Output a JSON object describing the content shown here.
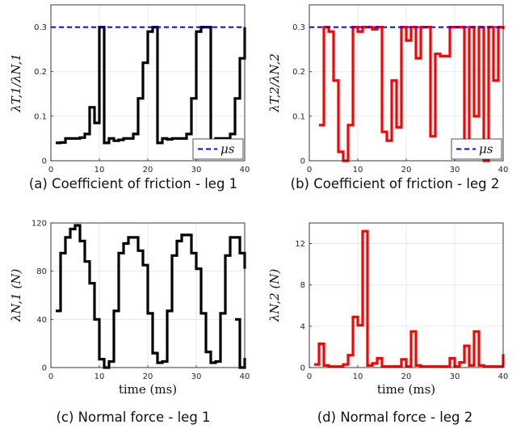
{
  "chart_data": [
    {
      "type": "line",
      "panel": "a",
      "caption": "(a) Coefficient of friction - leg 1",
      "ylabel": "λT,1/λN,1",
      "xlabel": "",
      "xlim": [
        0,
        40
      ],
      "ylim": [
        0,
        0.35
      ],
      "xticks": [
        "0",
        "10",
        "20",
        "30",
        "40"
      ],
      "yticks": [
        0,
        0.1,
        0.2,
        0.3
      ],
      "ytick_labels": [
        "0",
        "0.1",
        "0.2",
        "0.3"
      ],
      "grid": true,
      "legend": {
        "label": "μs",
        "placement": "bottom-right"
      },
      "series": [
        {
          "color": "#000000",
          "step": true,
          "x": [
            1,
            2,
            3,
            4,
            5,
            6,
            7,
            8,
            9,
            10,
            11,
            12,
            13,
            14,
            15,
            16,
            17,
            18,
            19,
            20,
            21,
            22,
            23,
            24,
            25,
            26,
            27,
            28,
            29,
            30,
            31,
            32,
            33,
            34,
            35,
            36,
            37,
            38,
            39,
            40
          ],
          "y": [
            0.04,
            0.041,
            0.05,
            0.05,
            0.05,
            0.052,
            0.06,
            0.12,
            0.085,
            0.3,
            0.04,
            0.05,
            0.045,
            0.047,
            0.05,
            0.05,
            0.06,
            0.14,
            0.22,
            0.29,
            0.3,
            0.04,
            0.05,
            0.048,
            0.05,
            0.05,
            0.05,
            0.06,
            0.14,
            0.29,
            0.3,
            0.3,
            0.04,
            0.05,
            0.05,
            0.05,
            0.06,
            0.14,
            0.23,
            0.3
          ]
        },
        {
          "name": "μs",
          "color": "#0000ff",
          "dashed": true,
          "x": [
            0,
            40
          ],
          "y": [
            0.3,
            0.3
          ]
        }
      ]
    },
    {
      "type": "line",
      "panel": "b",
      "caption": "(b) Coefficient of friction - leg 2",
      "ylabel": "λT,2/λN,2",
      "xlabel": "",
      "xlim": [
        0,
        40
      ],
      "ylim": [
        0,
        0.35
      ],
      "xticks": [
        "0",
        "10",
        "20",
        "30",
        "40"
      ],
      "yticks": [
        0,
        0.1,
        0.2,
        0.3
      ],
      "ytick_labels": [
        "0",
        "0.1",
        "0.2",
        "0.3"
      ],
      "grid": true,
      "legend": {
        "label": "μs",
        "placement": "bottom-right"
      },
      "series": [
        {
          "color": "#ff0000",
          "step": true,
          "x": [
            2,
            3,
            4,
            5,
            6,
            7,
            8,
            9,
            10,
            11,
            12,
            13,
            14,
            15,
            16,
            17,
            18,
            19,
            20,
            21,
            22,
            23,
            24,
            25,
            26,
            27,
            28,
            29,
            30,
            31,
            32,
            33,
            34,
            35,
            36,
            37,
            38,
            39,
            40
          ],
          "y": [
            0.08,
            0.3,
            0.29,
            0.18,
            0.02,
            0.0,
            0.08,
            0.3,
            0.29,
            0.3,
            0.3,
            0.295,
            0.3,
            0.065,
            0.045,
            0.18,
            0.075,
            0.3,
            0.27,
            0.3,
            0.23,
            0.3,
            0.3,
            0.055,
            0.24,
            0.235,
            0.235,
            0.3,
            0.3,
            0.3,
            0.01,
            0.3,
            0.1,
            0.3,
            0.0,
            0.3,
            0.18,
            0.3,
            0.295
          ]
        },
        {
          "name": "μs",
          "color": "#0000ff",
          "dashed": true,
          "x": [
            0,
            40
          ],
          "y": [
            0.3,
            0.3
          ]
        }
      ]
    },
    {
      "type": "line",
      "panel": "c",
      "caption": "(c) Normal force - leg 1",
      "ylabel": "λN,1 (N)",
      "xlabel": "time (ms)",
      "xlim": [
        0,
        40
      ],
      "ylim": [
        0,
        120
      ],
      "xticks": [
        "0",
        "10",
        "20",
        "30",
        "40"
      ],
      "yticks": [
        0,
        40,
        80,
        120
      ],
      "ytick_labels": [
        "0",
        "40",
        "80",
        "120"
      ],
      "grid": true,
      "series": [
        {
          "color": "#000000",
          "step": true,
          "x": [
            1,
            2,
            3,
            4,
            5,
            6,
            7,
            8,
            9,
            10,
            11,
            12,
            13,
            14,
            15,
            16,
            17,
            18,
            19,
            20,
            21,
            22,
            23,
            24,
            25,
            26,
            27,
            28,
            29,
            30,
            31,
            32,
            33,
            34,
            35,
            36,
            37,
            38,
            39,
            40
          ],
          "y": [
            47,
            95,
            108,
            115,
            118,
            105,
            88,
            70,
            40,
            7,
            0,
            5,
            47,
            95,
            103,
            108,
            108,
            97,
            85,
            45,
            12,
            4,
            5,
            47,
            93,
            105,
            110,
            110,
            95,
            82,
            45,
            13,
            4,
            5,
            45,
            93,
            108,
            108,
            95,
            82
          ]
        },
        {
          "color": "#000000",
          "step": true,
          "x": [
            38,
            39,
            40
          ],
          "y": [
            40,
            0,
            8
          ]
        }
      ]
    },
    {
      "type": "line",
      "panel": "d",
      "caption": "(d) Normal force - leg 2",
      "ylabel": "λN,2 (N)",
      "xlabel": "time (ms)",
      "xlim": [
        0,
        40
      ],
      "ylim": [
        0,
        14
      ],
      "xticks": [
        "0",
        "10",
        "20",
        "30",
        "40"
      ],
      "yticks": [
        0,
        4,
        8,
        12
      ],
      "ytick_labels": [
        "0",
        "4",
        "8",
        "12"
      ],
      "grid": true,
      "series": [
        {
          "color": "#ff0000",
          "step": true,
          "x": [
            1,
            2,
            3,
            4,
            5,
            6,
            7,
            8,
            9,
            10,
            11,
            12,
            13,
            14,
            15,
            16,
            17,
            18,
            19,
            20,
            21,
            22,
            23,
            24,
            25,
            26,
            27,
            28,
            29,
            30,
            31,
            32,
            33,
            34,
            35,
            36,
            37,
            38,
            39,
            40
          ],
          "y": [
            0.3,
            2.3,
            0.2,
            0.1,
            0.1,
            0.1,
            0.3,
            1.2,
            4.9,
            4.1,
            13.2,
            0.2,
            0.4,
            0.9,
            0.1,
            0.1,
            0.1,
            0.1,
            0.8,
            0.1,
            3.5,
            0.2,
            0.1,
            0.1,
            0.1,
            0.1,
            0.1,
            0.1,
            0.9,
            0.1,
            0.5,
            2.1,
            0.2,
            3.5,
            0.2,
            0.1,
            0.1,
            0.1,
            0.1,
            1.3
          ]
        }
      ]
    }
  ]
}
